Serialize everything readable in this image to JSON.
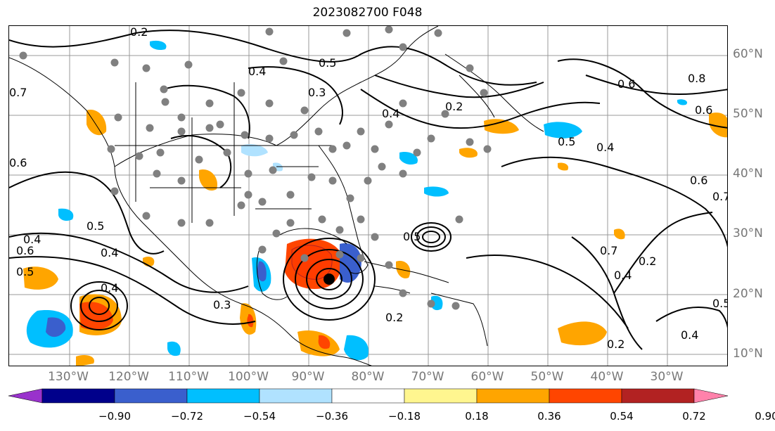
{
  "title": "2023082700 F048",
  "lat_labels": [
    "60°N",
    "50°N",
    "40°N",
    "30°N",
    "20°N",
    "10°N"
  ],
  "lon_labels": [
    "130°W",
    "120°W",
    "110°W",
    "100°W",
    "90°W",
    "80°W",
    "70°W",
    "60°W",
    "50°W",
    "40°W",
    "30°W"
  ],
  "colorbar": {
    "ticks": [
      "−0.90",
      "−0.72",
      "−0.54",
      "−0.36",
      "−0.18",
      "0.18",
      "0.36",
      "0.54",
      "0.72",
      "0.90"
    ],
    "colors": [
      "#9932cc",
      "#00008b",
      "#3a5fcd",
      "#00bfff",
      "#b0e2ff",
      "#ffffff",
      "#fff68f",
      "#ffa500",
      "#ff4500",
      "#b22222",
      "#ff82ab"
    ]
  },
  "contour_labels": [
    "0.2",
    "0.3",
    "0.4",
    "0.5",
    "0.6",
    "0.7",
    "0.8"
  ],
  "colors": {
    "contour": "#000000",
    "station": "#808080",
    "grid": "#999999",
    "coast": "#000000"
  }
}
